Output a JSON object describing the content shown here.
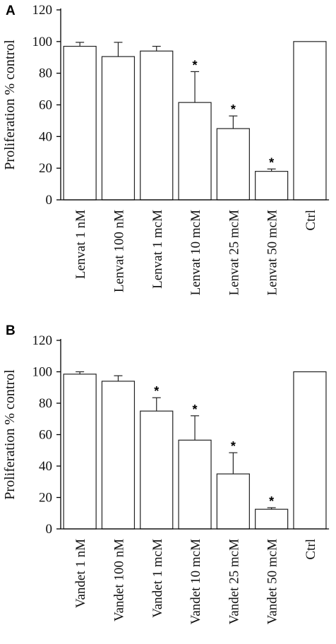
{
  "chart_data": [
    {
      "type": "bar",
      "panel_label": "A",
      "ylabel": "Proliferation % control",
      "xlabel": "",
      "ylim": [
        0,
        120
      ],
      "yticks": [
        0,
        20,
        40,
        60,
        80,
        100,
        120
      ],
      "categories": [
        "Lenvat 1 nM",
        "Lenvat 100 nM",
        "Lenvat 1 mcM",
        "Lenvat 10 mcM",
        "Lenvat 25 mcM",
        "Lenvat 50 mcM",
        "Ctrl"
      ],
      "values": [
        97,
        90.5,
        94,
        61.5,
        45,
        18,
        100
      ],
      "errors": [
        2.5,
        9,
        3,
        19.5,
        8,
        1.5,
        null
      ],
      "significance": [
        "",
        "",
        "",
        "*",
        "*",
        "*",
        ""
      ],
      "grid": false
    },
    {
      "type": "bar",
      "panel_label": "B",
      "ylabel": "Proliferation % control",
      "xlabel": "",
      "ylim": [
        0,
        120
      ],
      "yticks": [
        0,
        20,
        40,
        60,
        80,
        100,
        120
      ],
      "categories": [
        "Vandet 1 nM",
        "Vandet 100 nM",
        "Vandet 1 mcM",
        "Vandet 10 mcM",
        "Vandet 25 mcM",
        "Vandet 50 mcM",
        "Ctrl"
      ],
      "values": [
        98.5,
        94,
        75,
        56.5,
        35,
        12.5,
        100
      ],
      "errors": [
        1.5,
        3.5,
        8.5,
        15.5,
        13.5,
        1,
        null
      ],
      "significance": [
        "",
        "",
        "*",
        "*",
        "*",
        "*",
        ""
      ],
      "grid": false
    }
  ]
}
